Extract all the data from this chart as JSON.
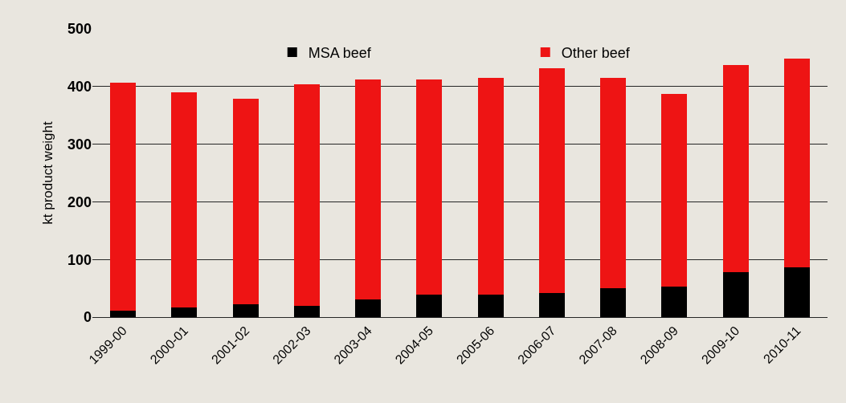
{
  "chart_data": {
    "type": "bar",
    "stacked": true,
    "ylabel": "kt product weight",
    "categories": [
      "1999-00",
      "2000-01",
      "2001-02",
      "2002-03",
      "2003-04",
      "2004-05",
      "2005-06",
      "2006-07",
      "2007-08",
      "2008-09",
      "2009-10",
      "2010-11"
    ],
    "series": [
      {
        "name": "MSA beef",
        "color": "#000000",
        "values": [
          11,
          17,
          22,
          19,
          30,
          39,
          39,
          42,
          50,
          53,
          78,
          86
        ]
      },
      {
        "name": "Other beef",
        "color": "#ee1414",
        "values": [
          396,
          373,
          357,
          385,
          382,
          373,
          376,
          390,
          365,
          334,
          359,
          362
        ]
      }
    ],
    "ylim": [
      0,
      500
    ],
    "yticks": [
      0,
      100,
      200,
      300,
      400,
      500
    ],
    "grid": "y",
    "legend": "top"
  }
}
